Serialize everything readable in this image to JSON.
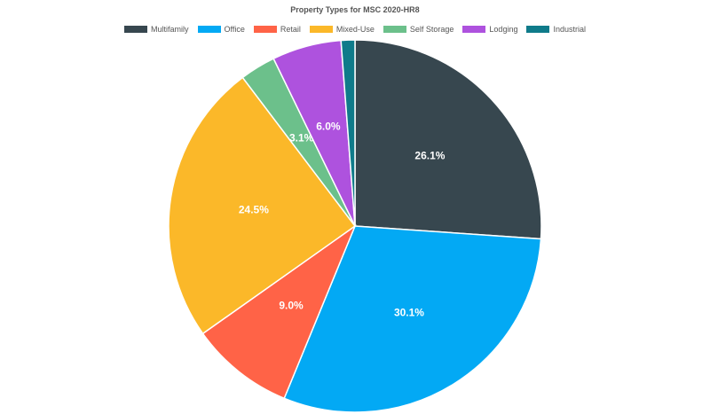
{
  "chart_data": {
    "type": "pie",
    "title": "Property Types for MSC 2020-HR8",
    "legend_position": "top",
    "slices": [
      {
        "name": "Multifamily",
        "value": 26.1,
        "label": "26.1%",
        "color": "#37474f"
      },
      {
        "name": "Office",
        "value": 30.1,
        "label": "30.1%",
        "color": "#03a9f4"
      },
      {
        "name": "Retail",
        "value": 9.0,
        "label": "9.0%",
        "color": "#ff6347"
      },
      {
        "name": "Mixed-Use",
        "value": 24.5,
        "label": "24.5%",
        "color": "#fbb829"
      },
      {
        "name": "Self Storage",
        "value": 3.1,
        "label": "3.1%",
        "color": "#6cc08b"
      },
      {
        "name": "Lodging",
        "value": 6.0,
        "label": "6.0%",
        "color": "#ae52de"
      },
      {
        "name": "Industrial",
        "value": 1.2,
        "label": "",
        "color": "#0f7b8a"
      }
    ]
  }
}
